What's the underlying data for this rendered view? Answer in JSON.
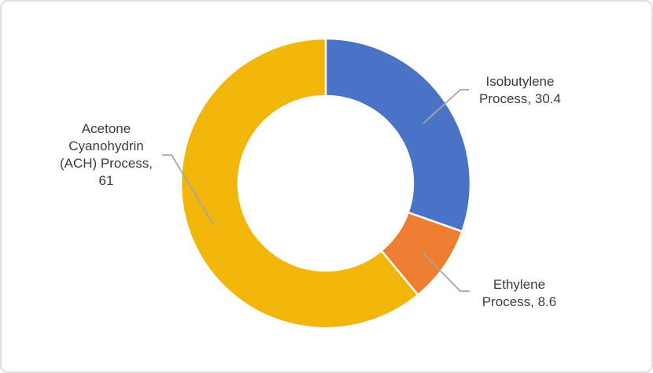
{
  "chart_data": {
    "type": "pie",
    "subtype": "donut",
    "title": "",
    "categories": [
      "Isobutylene Process",
      "Ethylene Process",
      "Acetone Cyanohydrin (ACH) Process"
    ],
    "values": [
      30.4,
      8.6,
      61
    ],
    "segments": [
      {
        "label": "Isobutylene Process",
        "value": 30.4,
        "color": "#4A73C6",
        "callout": "Isobutylene\nProcess, 30.4"
      },
      {
        "label": "Ethylene Process",
        "value": 8.6,
        "color": "#ED7D31",
        "callout": "Ethylene\nProcess, 8.6"
      },
      {
        "label": "Acetone Cyanohydrin (ACH) Process",
        "value": 61,
        "color": "#F2B60B",
        "callout": "Acetone\nCyanohydrin\n(ACH) Process,\n61"
      }
    ],
    "start_angle_deg": 0,
    "direction": "clockwise",
    "donut_hole_ratio": 0.6,
    "legend": "none",
    "data_labels": "outside callouts with leader lines",
    "slice_gap_color": "#FFFFFF",
    "leader_line_color": "#A6A6A6",
    "label_text_color": "#3C3C3C",
    "card_border_color": "#DFDFDF",
    "background_color": "#FFFFFF"
  }
}
